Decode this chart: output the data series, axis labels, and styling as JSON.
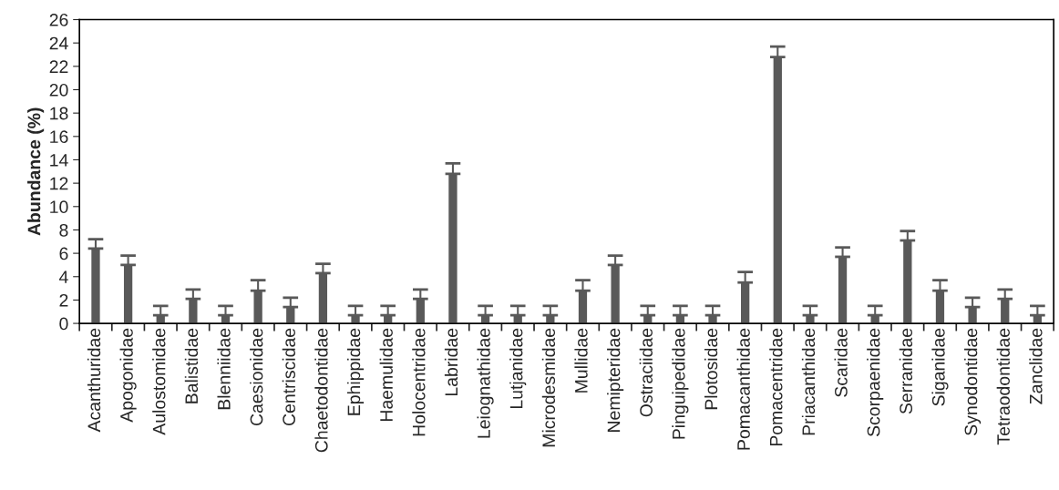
{
  "chart_data": {
    "type": "bar",
    "ylabel": "Abundance (%)",
    "categories": [
      "Acanthuridae",
      "Apogonidae",
      "Aulostomidae",
      "Balistidae",
      "Blenniidae",
      "Caesionidae",
      "Centriscidae",
      "Chaetodontidae",
      "Ephippidae",
      "Haemulidae",
      "Holocentridae",
      "Labridae",
      "Leiognathidae",
      "Lutjanidae",
      "Microdesmidae",
      "Mullidae",
      "Nemipteridae",
      "Ostraciidae",
      "Pinguipedidae",
      "Plotosidae",
      "Pomacanthidae",
      "Pomacentridae",
      "Priacanthidae",
      "Scaridae",
      "Scorpaenidae",
      "Serranidae",
      "Siganidae",
      "Synodontidae",
      "Tetraodontidae",
      "Zanclidae"
    ],
    "values": [
      6.4,
      5.0,
      0.7,
      2.1,
      0.7,
      2.8,
      1.4,
      4.3,
      0.7,
      0.7,
      2.1,
      12.8,
      0.7,
      0.7,
      0.7,
      2.8,
      5.0,
      0.7,
      0.7,
      0.7,
      3.5,
      22.8,
      0.7,
      5.7,
      0.7,
      7.1,
      2.8,
      1.4,
      2.1,
      0.7
    ],
    "errors": [
      [
        6.4,
        7.2
      ],
      [
        5.0,
        5.8
      ],
      [
        0.7,
        1.5
      ],
      [
        2.1,
        2.9
      ],
      [
        0.7,
        1.5
      ],
      [
        2.8,
        3.7
      ],
      [
        1.4,
        2.2
      ],
      [
        4.3,
        5.1
      ],
      [
        0.7,
        1.5
      ],
      [
        0.7,
        1.5
      ],
      [
        2.1,
        2.9
      ],
      [
        12.8,
        13.7
      ],
      [
        0.7,
        1.5
      ],
      [
        0.7,
        1.5
      ],
      [
        0.7,
        1.5
      ],
      [
        2.8,
        3.7
      ],
      [
        5.0,
        5.8
      ],
      [
        0.7,
        1.5
      ],
      [
        0.7,
        1.5
      ],
      [
        0.7,
        1.5
      ],
      [
        3.5,
        4.4
      ],
      [
        22.8,
        23.7
      ],
      [
        0.7,
        1.5
      ],
      [
        5.7,
        6.5
      ],
      [
        0.7,
        1.5
      ],
      [
        7.1,
        7.9
      ],
      [
        2.8,
        3.7
      ],
      [
        1.4,
        2.2
      ],
      [
        2.1,
        2.9
      ],
      [
        0.7,
        1.5
      ]
    ],
    "color": "#595959",
    "ylim": [
      0,
      26
    ],
    "yticks": [
      0,
      2,
      4,
      6,
      8,
      10,
      12,
      14,
      16,
      18,
      20,
      22,
      24,
      26
    ]
  }
}
